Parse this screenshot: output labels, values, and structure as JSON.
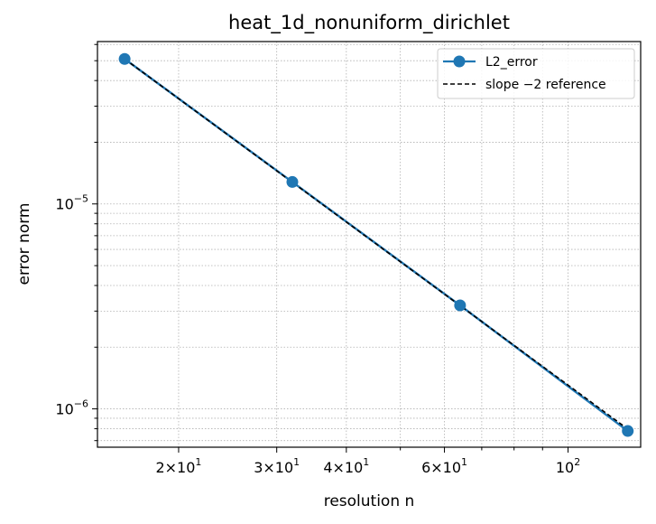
{
  "chart_data": {
    "type": "line",
    "title": "heat_1d_nonuniform_dirichlet",
    "xlabel": "resolution n",
    "ylabel": "error norm",
    "x_scale": "log",
    "y_scale": "log",
    "xlim": [
      14.3,
      135
    ],
    "ylim": [
      6.5e-07,
      6.2e-05
    ],
    "grid": true,
    "legend_position": "top-right",
    "x_tick_labels": [
      {
        "value": 20,
        "base": "2",
        "exp": "1"
      },
      {
        "value": 30,
        "base": "3",
        "exp": "1"
      },
      {
        "value": 40,
        "base": "4",
        "exp": "1"
      },
      {
        "value": 60,
        "base": "6",
        "exp": "1"
      },
      {
        "value": 100,
        "base": "",
        "exp": "2"
      }
    ],
    "y_tick_labels": [
      {
        "value": 1e-06,
        "exp": "−6"
      },
      {
        "value": 1e-05,
        "exp": "−5"
      }
    ],
    "series": [
      {
        "name": "L2_error",
        "style": "solid-marker",
        "color": "#1f77b4",
        "x": [
          16,
          32,
          64,
          128
        ],
        "y": [
          5.1e-05,
          1.28e-05,
          3.2e-06,
          7.8e-07
        ]
      },
      {
        "name": "slope −2 reference",
        "style": "dashed",
        "color": "#000000",
        "x": [
          16,
          32,
          64,
          128
        ],
        "y": [
          5.1e-05,
          1.275e-05,
          3.19e-06,
          7.97e-07
        ]
      }
    ]
  }
}
